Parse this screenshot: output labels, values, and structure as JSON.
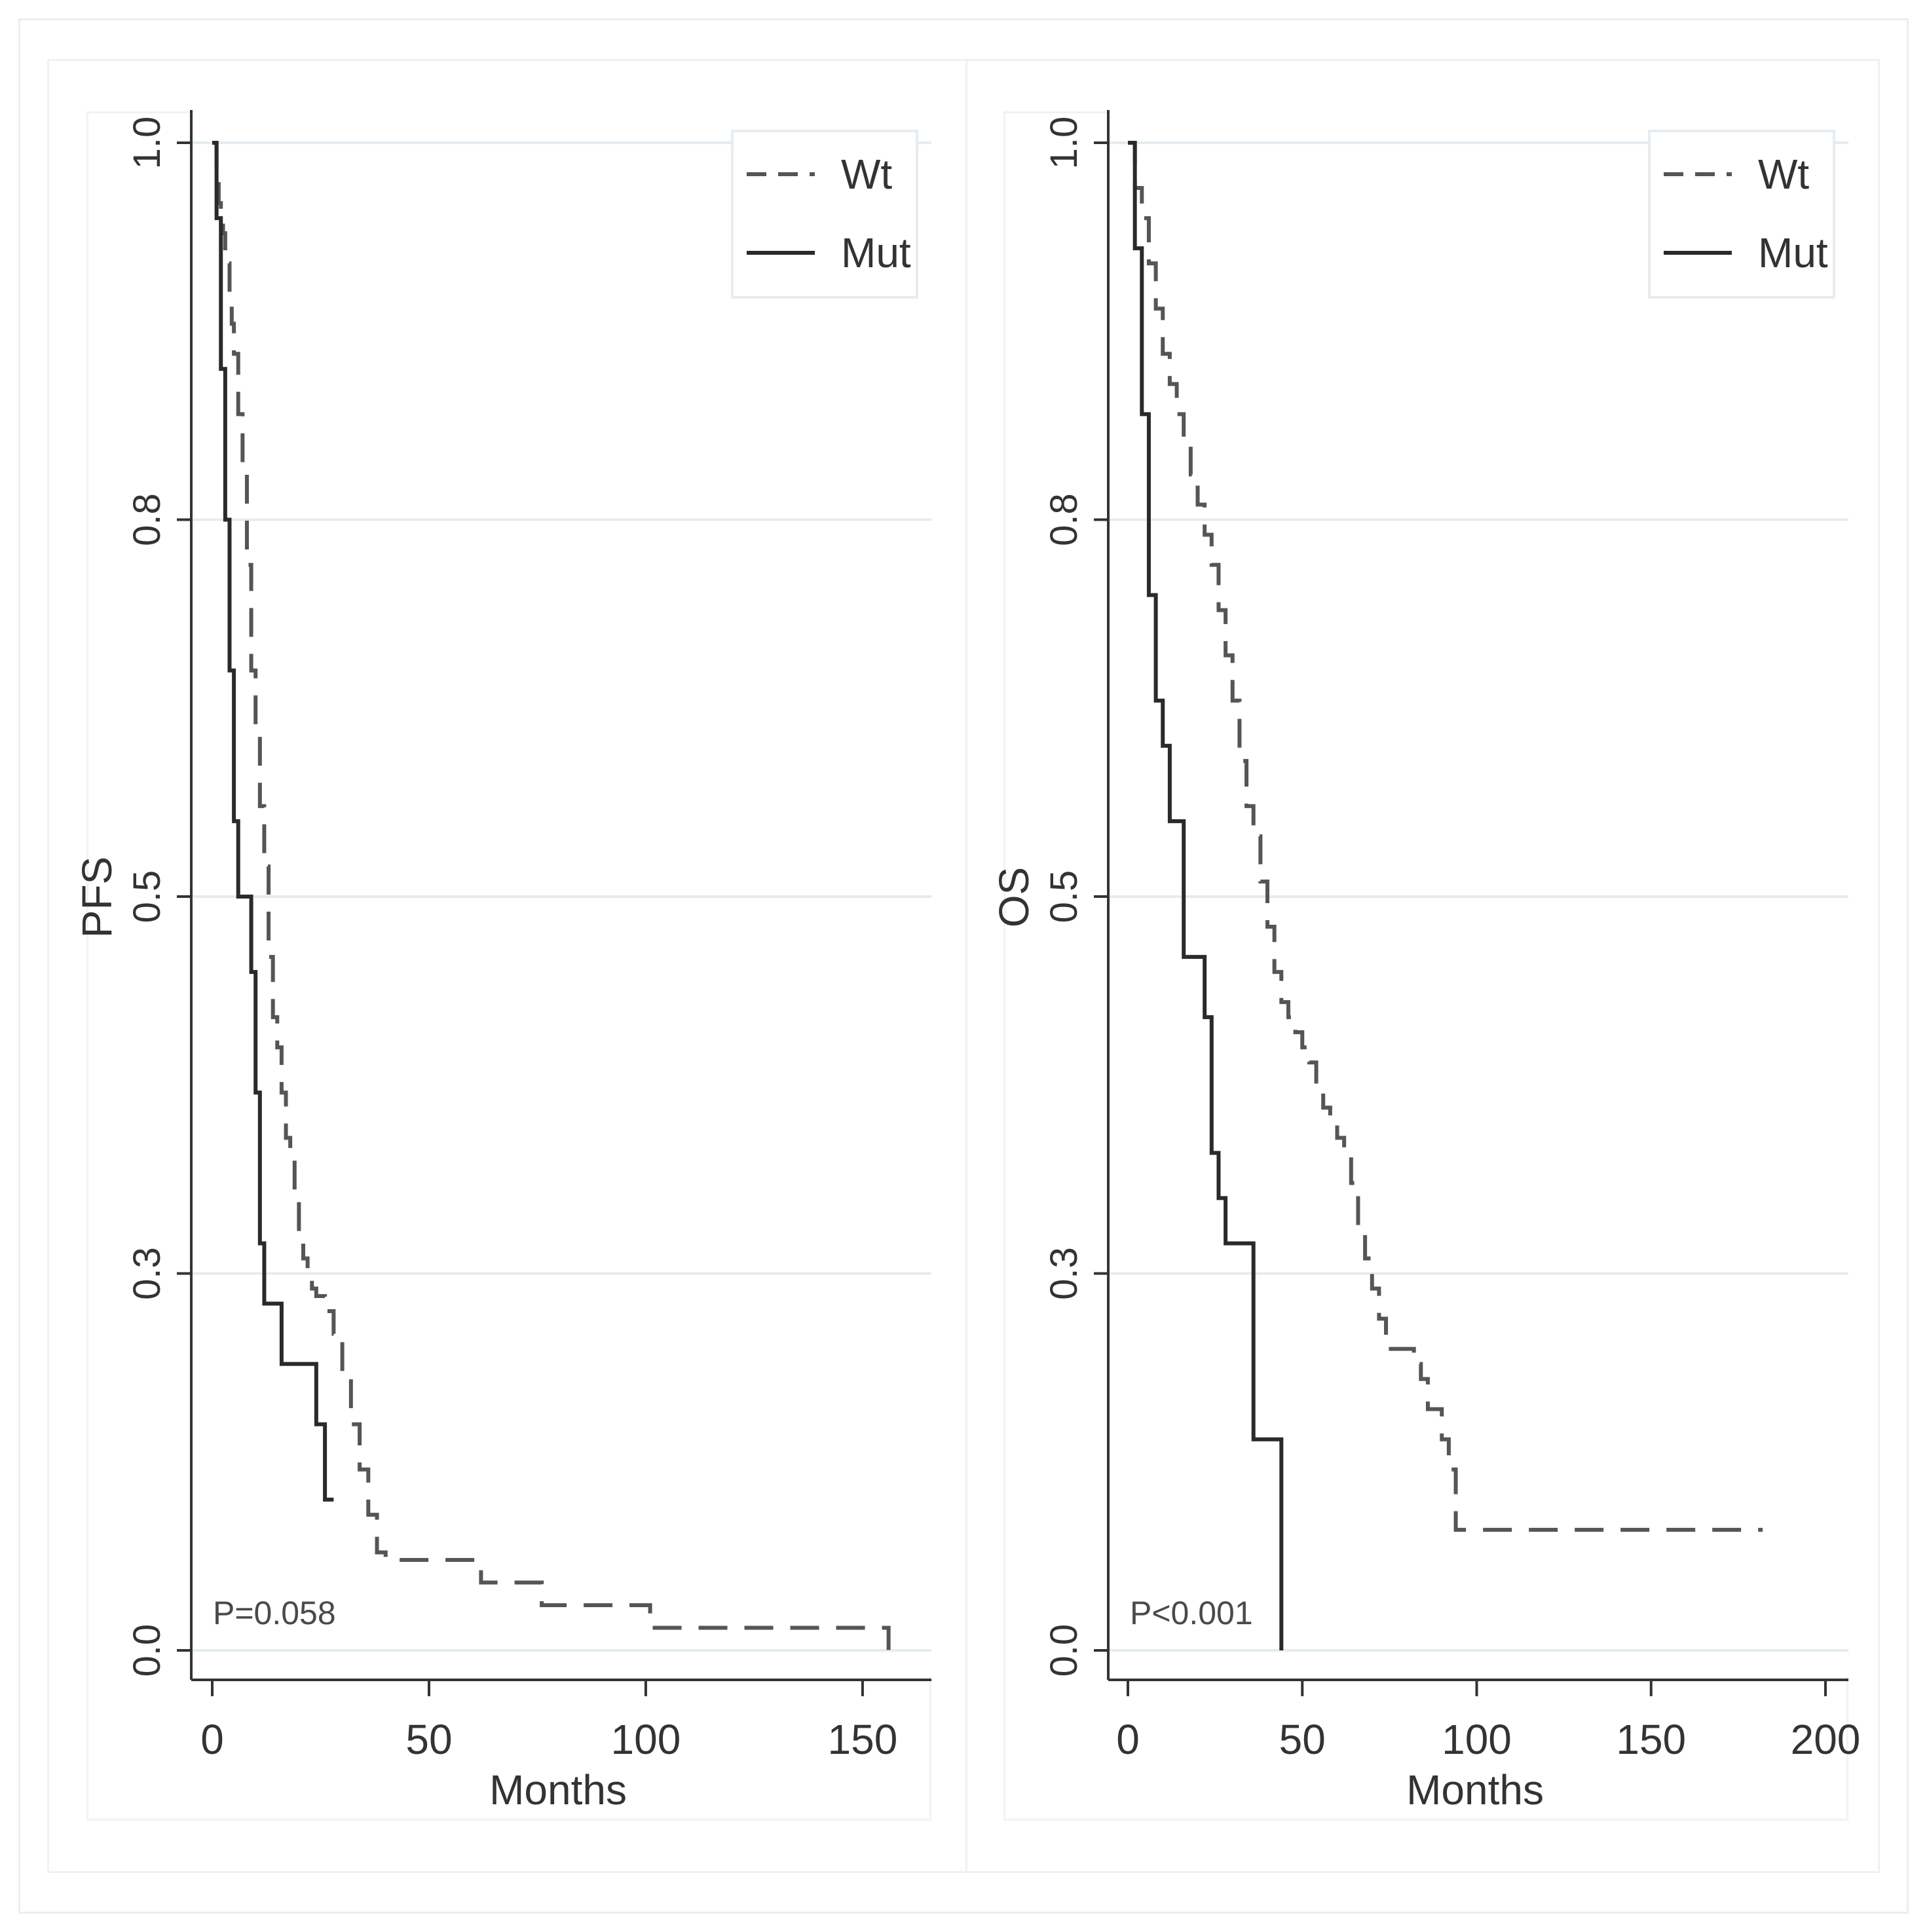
{
  "chart_data": [
    {
      "type": "line",
      "ylabel": "PFS",
      "xlabel": "Months",
      "xlim": [
        0,
        160
      ],
      "ylim": [
        0,
        1
      ],
      "x_ticks": [
        0,
        50,
        100,
        150
      ],
      "x_tick_labels": [
        "0",
        "50",
        "100",
        "150"
      ],
      "y_ticks": [
        0,
        0.25,
        0.5,
        0.75,
        1
      ],
      "y_tick_labels": [
        "0.0",
        "0.3",
        "0.5",
        "0.8",
        "1.0"
      ],
      "grid": "horizontal",
      "legend": {
        "placement": "top-right",
        "entries": [
          "Wt",
          "Mut"
        ]
      },
      "annotation": "P=0.058",
      "series": [
        {
          "name": "Wt",
          "style": "dashed",
          "color": "#555555",
          "x": [
            0,
            1,
            1.5,
            2,
            2.5,
            3,
            3.5,
            4,
            4.5,
            5,
            6,
            7,
            8,
            9,
            10,
            11,
            12,
            13,
            14,
            15,
            16,
            17,
            18,
            19,
            20,
            21,
            22,
            23,
            24,
            26,
            28,
            30,
            32,
            34,
            36,
            38,
            40,
            45,
            50,
            60,
            62,
            65,
            70,
            76,
            80,
            90,
            100,
            101,
            120,
            140,
            155,
            156
          ],
          "y": [
            1,
            0.98,
            0.96,
            0.95,
            0.94,
            0.93,
            0.92,
            0.9,
            0.88,
            0.86,
            0.82,
            0.78,
            0.72,
            0.65,
            0.61,
            0.56,
            0.52,
            0.46,
            0.42,
            0.4,
            0.37,
            0.34,
            0.33,
            0.3,
            0.27,
            0.26,
            0.25,
            0.24,
            0.235,
            0.225,
            0.21,
            0.18,
            0.15,
            0.12,
            0.09,
            0.065,
            0.06,
            0.06,
            0.06,
            0.06,
            0.045,
            0.045,
            0.045,
            0.03,
            0.03,
            0.03,
            0.03,
            0.015,
            0.015,
            0.015,
            0.015,
            0.0
          ]
        },
        {
          "name": "Mut",
          "style": "solid",
          "color": "#2a2a2a",
          "x": [
            0,
            1,
            2,
            3,
            4,
            5,
            6,
            8,
            9,
            10,
            11,
            12,
            14,
            16,
            18,
            20,
            22,
            24,
            25,
            26,
            28
          ],
          "y": [
            1,
            0.95,
            0.85,
            0.75,
            0.65,
            0.55,
            0.5,
            0.5,
            0.45,
            0.37,
            0.27,
            0.23,
            0.23,
            0.19,
            0.19,
            0.19,
            0.19,
            0.15,
            0.15,
            0.1,
            0.1
          ]
        }
      ]
    },
    {
      "type": "line",
      "ylabel": "OS",
      "xlabel": "Months",
      "xlim": [
        0,
        205
      ],
      "ylim": [
        0,
        1
      ],
      "x_ticks": [
        0,
        50,
        100,
        150,
        200
      ],
      "x_tick_labels": [
        "0",
        "50",
        "100",
        "150",
        "200"
      ],
      "y_ticks": [
        0,
        0.25,
        0.5,
        0.75,
        1
      ],
      "y_tick_labels": [
        "0.0",
        "0.3",
        "0.5",
        "0.8",
        "1.0"
      ],
      "grid": "horizontal",
      "legend": {
        "placement": "top-right",
        "entries": [
          "Wt",
          "Mut"
        ]
      },
      "annotation": "P<0.001",
      "series": [
        {
          "name": "Wt",
          "style": "dashed",
          "color": "#555555",
          "x": [
            0,
            2,
            4,
            6,
            8,
            10,
            12,
            14,
            16,
            18,
            20,
            22,
            24,
            26,
            28,
            30,
            32,
            34,
            36,
            38,
            40,
            42,
            44,
            46,
            48,
            50,
            52,
            54,
            56,
            58,
            60,
            62,
            64,
            66,
            68,
            70,
            72,
            74,
            76,
            78,
            80,
            82,
            84,
            86,
            88,
            90,
            92,
            94,
            120,
            150,
            182
          ],
          "y": [
            1,
            0.97,
            0.95,
            0.92,
            0.89,
            0.86,
            0.84,
            0.82,
            0.8,
            0.78,
            0.76,
            0.74,
            0.72,
            0.69,
            0.66,
            0.63,
            0.59,
            0.56,
            0.54,
            0.51,
            0.48,
            0.45,
            0.43,
            0.42,
            0.41,
            0.4,
            0.39,
            0.37,
            0.36,
            0.35,
            0.34,
            0.33,
            0.31,
            0.28,
            0.26,
            0.24,
            0.22,
            0.2,
            0.2,
            0.2,
            0.2,
            0.19,
            0.18,
            0.16,
            0.16,
            0.14,
            0.12,
            0.08,
            0.08,
            0.08,
            0.08
          ]
        },
        {
          "name": "Mut",
          "style": "solid",
          "color": "#2a2a2a",
          "x": [
            0,
            2,
            4,
            6,
            8,
            10,
            12,
            14,
            16,
            18,
            20,
            22,
            24,
            26,
            28,
            30,
            32,
            34,
            36,
            38,
            40,
            42,
            44
          ],
          "y": [
            1,
            0.93,
            0.82,
            0.7,
            0.63,
            0.6,
            0.55,
            0.55,
            0.46,
            0.46,
            0.46,
            0.42,
            0.33,
            0.3,
            0.27,
            0.27,
            0.27,
            0.27,
            0.14,
            0.14,
            0.14,
            0.14,
            0.0
          ]
        }
      ]
    }
  ]
}
